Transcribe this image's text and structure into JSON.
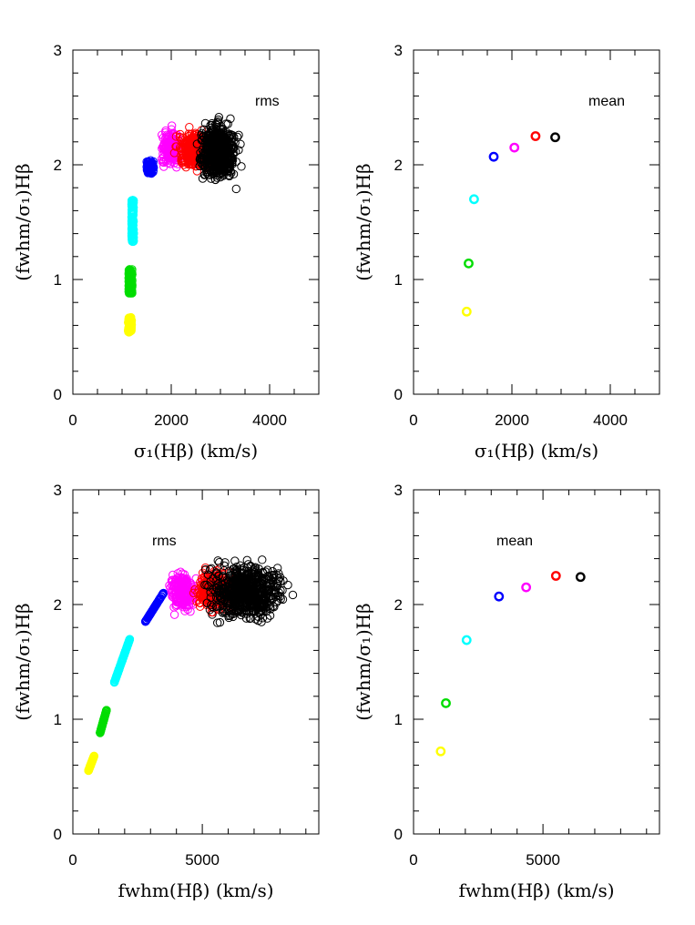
{
  "chart_data": [
    {
      "type": "scatter",
      "panel": "top-left",
      "annotation": "rms",
      "xlabel": "σ₁(Hβ)  (km/s)",
      "ylabel": "(fwhm/σ₁)Hβ",
      "xlim": [
        0,
        5000
      ],
      "ylim": [
        0,
        3
      ],
      "xticks": [
        0,
        2000,
        4000
      ],
      "xticklabels": [
        "0",
        "2000",
        "4000"
      ],
      "yticks": [
        0,
        1,
        2,
        3
      ],
      "yticklabels": [
        "0",
        "1",
        "2",
        "3"
      ],
      "xminor": 500,
      "yminor": 0.2,
      "grid": false,
      "marker": "open-circle",
      "series": [
        {
          "color": "#ffff00",
          "cluster": {
            "x_range": [
              1100,
              1220
            ],
            "y_range": [
              0.54,
              0.67
            ],
            "n": 90
          }
        },
        {
          "color": "#00dd00",
          "cluster": {
            "x_range": [
              1110,
              1230
            ],
            "y_range": [
              0.88,
              1.09
            ],
            "n": 120
          }
        },
        {
          "color": "#00ffff",
          "cluster": {
            "x_range": [
              1180,
              1250
            ],
            "y_range": [
              1.33,
              1.7
            ],
            "n": 140
          }
        },
        {
          "color": "#0000ff",
          "cluster": {
            "x_range": [
              1450,
              1700
            ],
            "y_range": [
              1.85,
              2.1
            ],
            "n": 110
          }
        },
        {
          "color": "#ff00ff",
          "cluster": {
            "x_range": [
              1700,
              2300
            ],
            "y_range": [
              1.9,
              2.4
            ],
            "n": 200
          }
        },
        {
          "color": "#ff0000",
          "cluster": {
            "x_range": [
              1950,
              3000
            ],
            "y_range": [
              1.85,
              2.4
            ],
            "n": 380
          }
        },
        {
          "color": "#000000",
          "cluster": {
            "x_range": [
              2400,
              3500
            ],
            "y_range": [
              1.7,
              2.54
            ],
            "n": 650
          }
        }
      ]
    },
    {
      "type": "scatter",
      "panel": "top-right",
      "annotation": "mean",
      "xlabel": "σ₁(Hβ)  (km/s)",
      "ylabel": "(fwhm/σ₁)Hβ",
      "xlim": [
        0,
        5000
      ],
      "ylim": [
        0,
        3
      ],
      "xticks": [
        0,
        2000,
        4000
      ],
      "xticklabels": [
        "0",
        "2000",
        "4000"
      ],
      "yticks": [
        0,
        1,
        2,
        3
      ],
      "yticklabels": [
        "0",
        "1",
        "2",
        "3"
      ],
      "xminor": 500,
      "yminor": 0.2,
      "grid": false,
      "marker": "open-circle",
      "series": [
        {
          "color": "#ffff00",
          "x": [
            1080
          ],
          "y": [
            0.72
          ]
        },
        {
          "color": "#00dd00",
          "x": [
            1120
          ],
          "y": [
            1.14
          ]
        },
        {
          "color": "#00ffff",
          "x": [
            1230
          ],
          "y": [
            1.7
          ]
        },
        {
          "color": "#0000ff",
          "x": [
            1630
          ],
          "y": [
            2.07
          ]
        },
        {
          "color": "#ff00ff",
          "x": [
            2050
          ],
          "y": [
            2.15
          ]
        },
        {
          "color": "#ff0000",
          "x": [
            2480
          ],
          "y": [
            2.25
          ]
        },
        {
          "color": "#000000",
          "x": [
            2880
          ],
          "y": [
            2.24
          ]
        }
      ]
    },
    {
      "type": "scatter",
      "panel": "bottom-left",
      "annotation": "rms",
      "xlabel": "fwhm(Hβ)  (km/s)",
      "ylabel": "(fwhm/σ₁)Hβ",
      "xlim": [
        0,
        9500
      ],
      "ylim": [
        0,
        3
      ],
      "xticks": [
        0,
        5000
      ],
      "xticklabels": [
        "0",
        "5000"
      ],
      "yticks": [
        0,
        1,
        2,
        3
      ],
      "yticklabels": [
        "0",
        "1",
        "2",
        "3"
      ],
      "xminor": 1000,
      "yminor": 0.2,
      "grid": false,
      "marker": "open-circle",
      "series": [
        {
          "color": "#ffff00",
          "cluster": {
            "x_range": [
              600,
              820
            ],
            "y_range": [
              0.55,
              0.68
            ],
            "n": 90
          }
        },
        {
          "color": "#00dd00",
          "cluster": {
            "x_range": [
              1050,
              1300
            ],
            "y_range": [
              0.88,
              1.08
            ],
            "n": 120
          }
        },
        {
          "color": "#00ffff",
          "cluster": {
            "x_range": [
              1600,
              2200
            ],
            "y_range": [
              1.32,
              1.7
            ],
            "n": 140
          }
        },
        {
          "color": "#0000ff",
          "cluster": {
            "x_range": [
              2800,
              3500
            ],
            "y_range": [
              1.85,
              2.1
            ],
            "n": 110
          }
        },
        {
          "color": "#ff00ff",
          "cluster": {
            "x_range": [
              3500,
              5000
            ],
            "y_range": [
              1.82,
              2.4
            ],
            "n": 200
          }
        },
        {
          "color": "#ff0000",
          "cluster": {
            "x_range": [
              4400,
              6600
            ],
            "y_range": [
              1.85,
              2.4
            ],
            "n": 380
          }
        },
        {
          "color": "#000000",
          "cluster": {
            "x_range": [
              4500,
              8900
            ],
            "y_range": [
              1.7,
              2.54
            ],
            "n": 650
          }
        }
      ]
    },
    {
      "type": "scatter",
      "panel": "bottom-right",
      "annotation": "mean",
      "xlabel": "fwhm(Hβ)  (km/s)",
      "ylabel": "(fwhm/σ₁)Hβ",
      "xlim": [
        0,
        9500
      ],
      "ylim": [
        0,
        3
      ],
      "xticks": [
        0,
        5000
      ],
      "xticklabels": [
        "0",
        "5000"
      ],
      "yticks": [
        0,
        1,
        2,
        3
      ],
      "yticklabels": [
        "0",
        "1",
        "2",
        "3"
      ],
      "xminor": 1000,
      "yminor": 0.2,
      "grid": false,
      "marker": "open-circle",
      "series": [
        {
          "color": "#ffff00",
          "x": [
            1050
          ],
          "y": [
            0.72
          ]
        },
        {
          "color": "#00dd00",
          "x": [
            1250
          ],
          "y": [
            1.14
          ]
        },
        {
          "color": "#00ffff",
          "x": [
            2050
          ],
          "y": [
            1.69
          ]
        },
        {
          "color": "#0000ff",
          "x": [
            3300
          ],
          "y": [
            2.07
          ]
        },
        {
          "color": "#ff00ff",
          "x": [
            4350
          ],
          "y": [
            2.15
          ]
        },
        {
          "color": "#ff0000",
          "x": [
            5500
          ],
          "y": [
            2.25
          ]
        },
        {
          "color": "#000000",
          "x": [
            6450
          ],
          "y": [
            2.24
          ]
        }
      ]
    }
  ]
}
